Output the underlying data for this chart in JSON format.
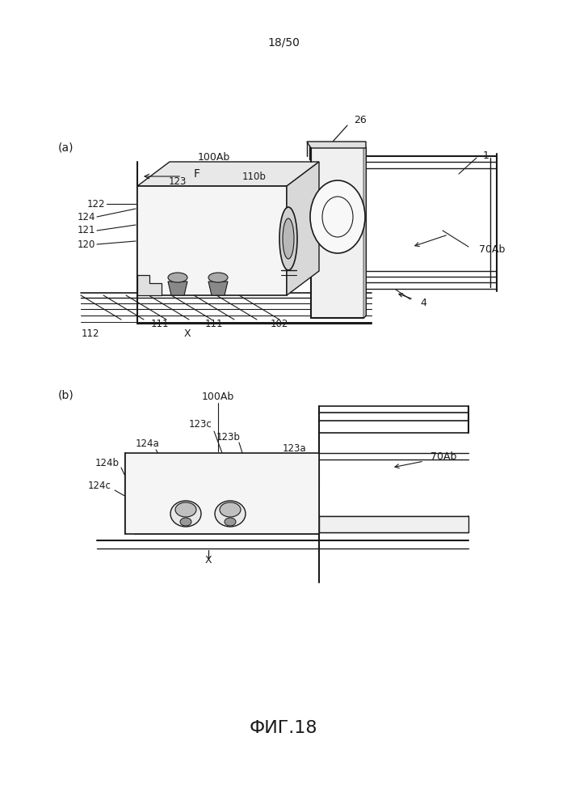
{
  "page_label": "18/50",
  "fig_label": "ФИГ.18",
  "bg_color": "#ffffff",
  "line_color": "#1a1a1a",
  "panel_a_label": "(a)",
  "panel_b_label": "(b)"
}
